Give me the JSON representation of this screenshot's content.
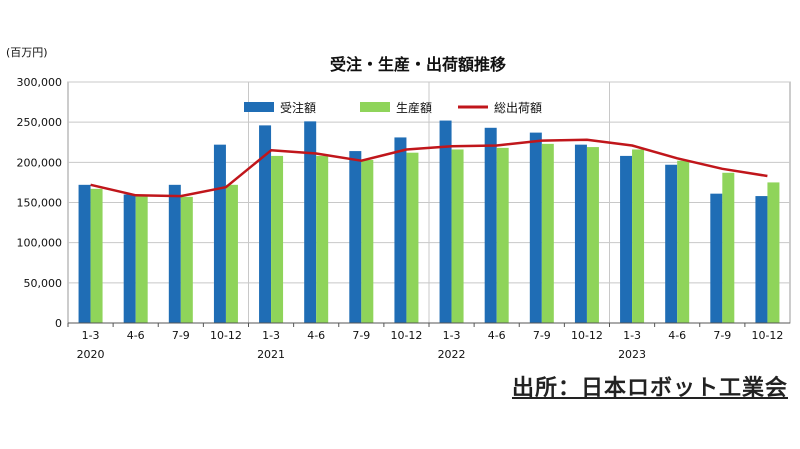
{
  "chart_data": {
    "type": "bar",
    "title": "受注・生産・出荷額推移",
    "ylabel": "(百万円)",
    "ylim": [
      0,
      300000
    ],
    "yticks": [
      0,
      50000,
      100000,
      150000,
      200000,
      250000,
      300000
    ],
    "ytick_labels": [
      "0",
      "50,000",
      "100,000",
      "150,000",
      "200,000",
      "250,000",
      "300,000"
    ],
    "categories": [
      "1-3",
      "4-6",
      "7-9",
      "10-12",
      "1-3",
      "4-6",
      "7-9",
      "10-12",
      "1-3",
      "4-6",
      "7-9",
      "10-12",
      "1-3",
      "4-6",
      "7-9",
      "10-12"
    ],
    "years": [
      {
        "label": "2020",
        "start": 0
      },
      {
        "label": "2021",
        "start": 4
      },
      {
        "label": "2022",
        "start": 8
      },
      {
        "label": "2023",
        "start": 12
      }
    ],
    "legend_position": "top-center",
    "grid": true,
    "series": [
      {
        "name": "受注額",
        "kind": "bar",
        "color": "#1f6db5",
        "values": [
          172000,
          160000,
          172000,
          222000,
          246000,
          251000,
          214000,
          231000,
          252000,
          243000,
          237000,
          222000,
          208000,
          197000,
          161000,
          158000
        ]
      },
      {
        "name": "生産額",
        "kind": "bar",
        "color": "#8fd45a",
        "values": [
          167000,
          158000,
          157000,
          172000,
          208000,
          208000,
          203000,
          212000,
          216000,
          218000,
          223000,
          219000,
          216000,
          202000,
          187000,
          175000
        ]
      },
      {
        "name": "総出荷額",
        "kind": "line",
        "color": "#c0161b",
        "values": [
          172000,
          159000,
          158000,
          169000,
          215000,
          211000,
          202000,
          216000,
          220000,
          221000,
          227000,
          228000,
          221000,
          205000,
          192000,
          183000
        ]
      }
    ]
  },
  "source_label": "出所：日本ロボット工業会"
}
